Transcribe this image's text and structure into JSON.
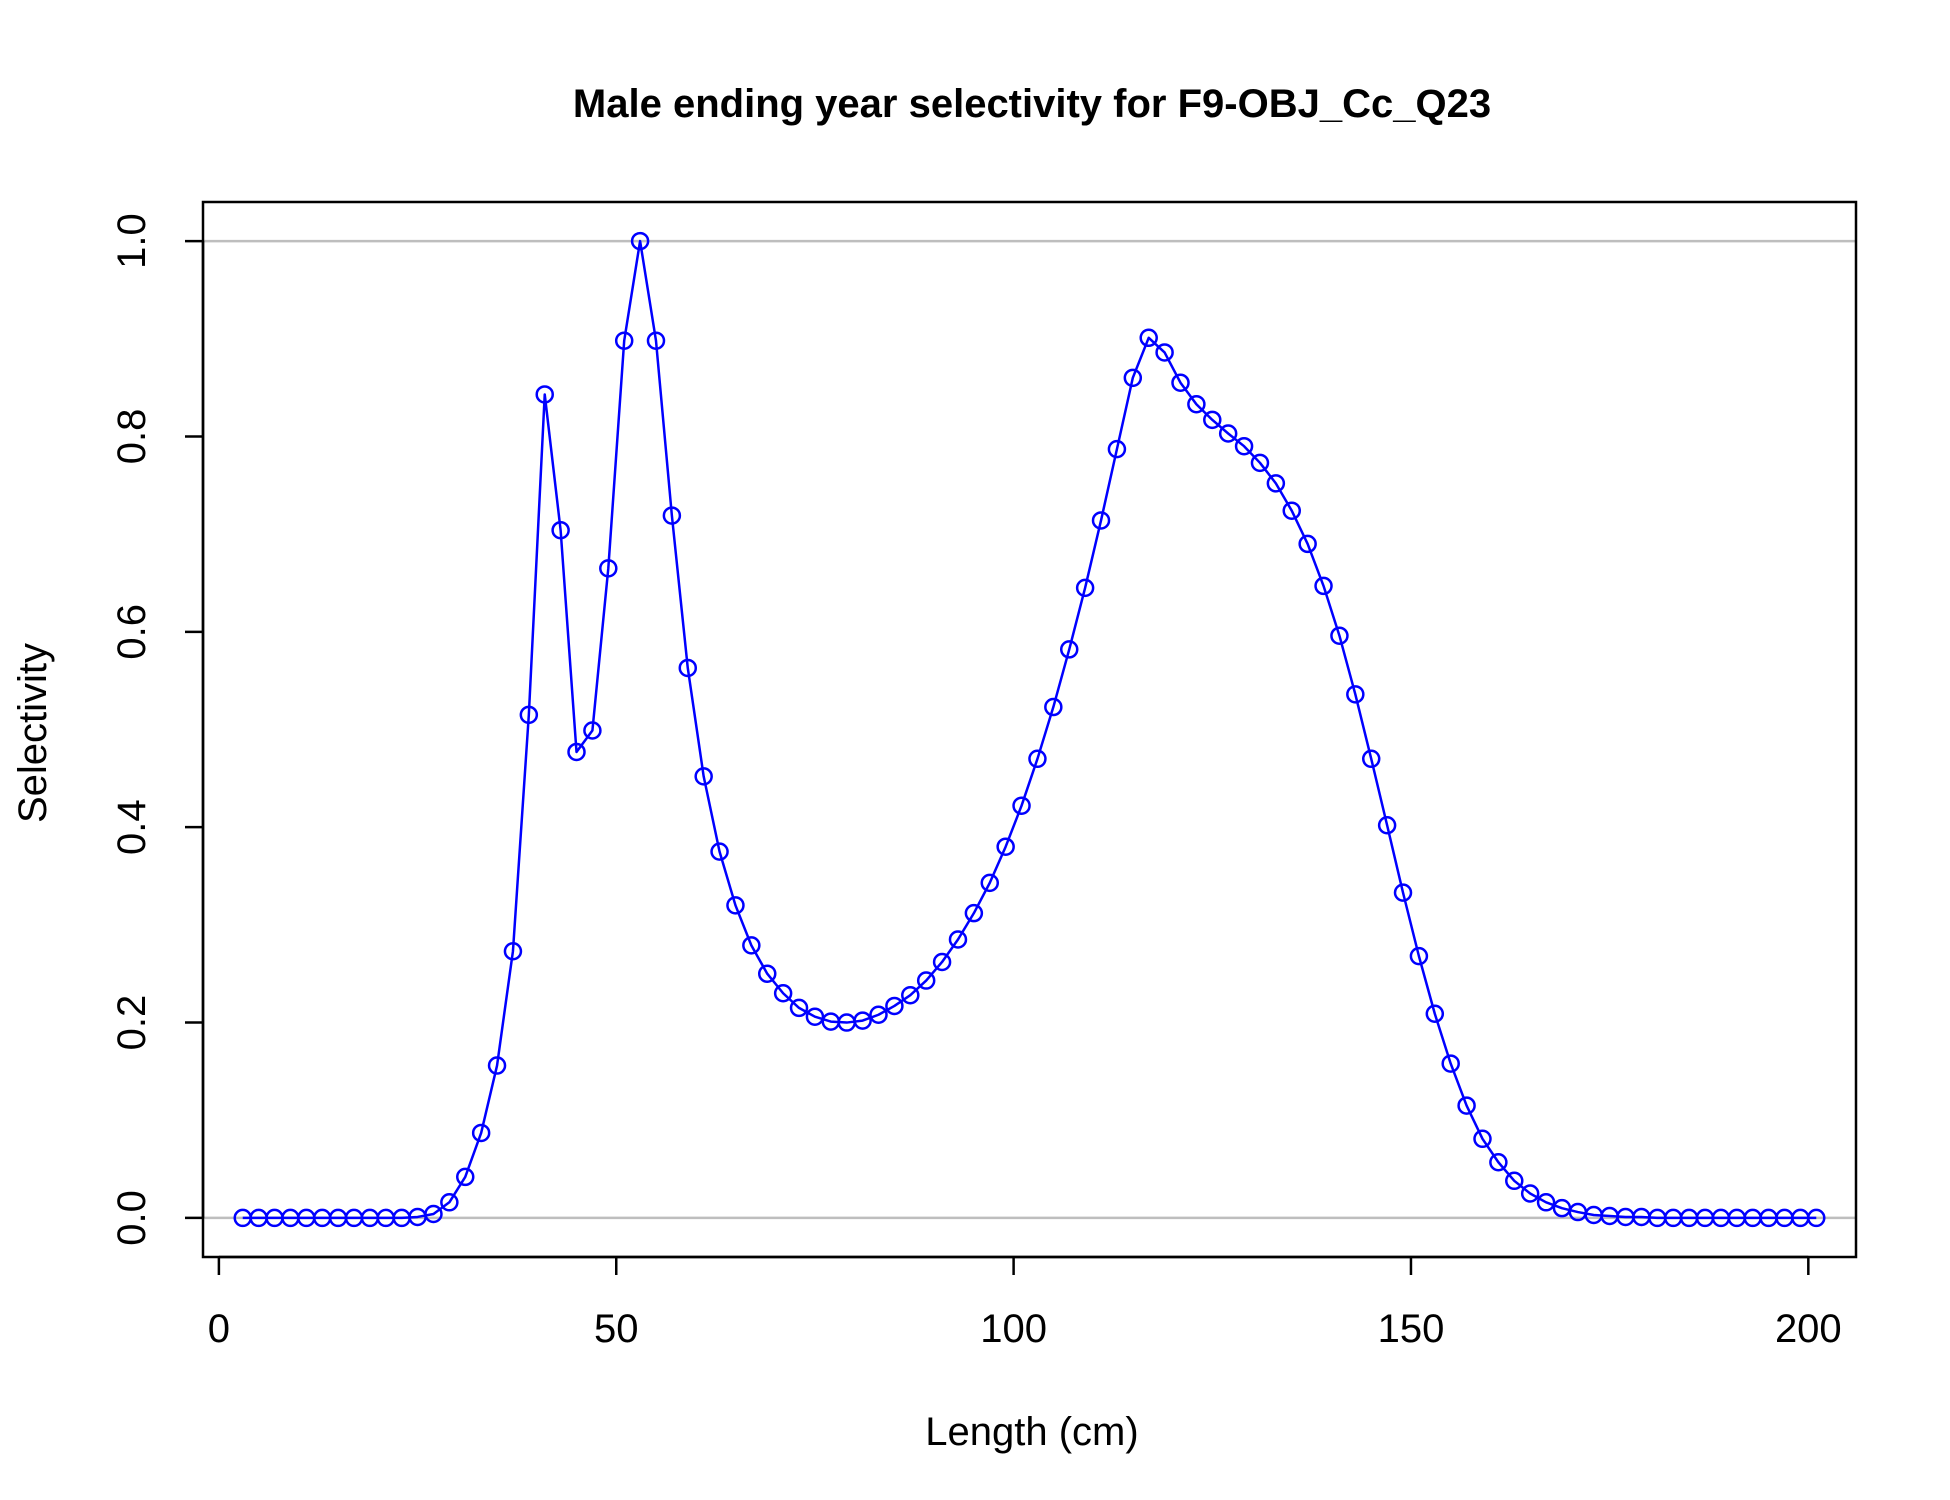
{
  "chart_data": {
    "type": "line",
    "title": "Male ending year selectivity for F9-OBJ_Cc_Q23",
    "xlabel": "Length (cm)",
    "ylabel": "Selectivity",
    "xlim": [
      -2,
      206
    ],
    "ylim": [
      -0.04,
      1.04
    ],
    "x_ticks": [
      0,
      50,
      100,
      150,
      200
    ],
    "x_tick_labels": [
      "0",
      "50",
      "100",
      "150",
      "200"
    ],
    "y_ticks": [
      0.0,
      0.2,
      0.4,
      0.6,
      0.8,
      1.0
    ],
    "y_tick_labels": [
      "0.0",
      "0.2",
      "0.4",
      "0.6",
      "0.8",
      "1.0"
    ],
    "reference_lines": [
      0,
      1
    ],
    "grid": false,
    "legend": false,
    "colors": {
      "series": "#0000ff",
      "reference_line": "#bebebe",
      "axes": "#000000"
    },
    "marker": "open-circle",
    "series": [
      {
        "x": [
          3,
          5,
          7,
          9,
          11,
          13,
          15,
          17,
          19,
          21,
          23,
          25,
          27,
          29,
          31,
          33,
          35,
          37,
          39,
          41,
          43,
          45,
          47,
          49,
          51,
          53,
          55,
          57,
          59,
          61,
          63,
          65,
          67,
          69,
          71,
          73,
          75,
          77,
          79,
          81,
          83,
          85,
          87,
          89,
          91,
          93,
          95,
          97,
          99,
          101,
          103,
          105,
          107,
          109,
          111,
          113,
          115,
          117,
          119,
          121,
          123,
          125,
          127,
          129,
          131,
          133,
          135,
          137,
          139,
          141,
          143,
          145,
          147,
          149,
          151,
          153,
          155,
          157,
          159,
          161,
          163,
          165,
          167,
          169,
          171,
          173,
          175,
          177,
          179,
          181,
          183,
          185,
          187,
          189,
          191,
          193,
          195,
          197,
          199,
          201
        ],
        "values": [
          0.0,
          0.0,
          0.0,
          0.0,
          0.0,
          0.0,
          0.0,
          0.0,
          0.0,
          0.0,
          0.0,
          0.001,
          0.004,
          0.016,
          0.042,
          0.087,
          0.156,
          0.273,
          0.515,
          0.843,
          0.704,
          0.477,
          0.499,
          0.665,
          0.898,
          1.0,
          0.898,
          0.719,
          0.563,
          0.452,
          0.375,
          0.32,
          0.279,
          0.25,
          0.23,
          0.215,
          0.206,
          0.201,
          0.2,
          0.202,
          0.208,
          0.217,
          0.228,
          0.243,
          0.262,
          0.285,
          0.312,
          0.343,
          0.38,
          0.422,
          0.47,
          0.523,
          0.582,
          0.645,
          0.714,
          0.787,
          0.86,
          0.901,
          0.886,
          0.855,
          0.833,
          0.817,
          0.803,
          0.79,
          0.773,
          0.752,
          0.724,
          0.69,
          0.647,
          0.596,
          0.536,
          0.47,
          0.402,
          0.333,
          0.268,
          0.209,
          0.158,
          0.115,
          0.081,
          0.057,
          0.038,
          0.025,
          0.016,
          0.01,
          0.006,
          0.003,
          0.002,
          0.001,
          0.001,
          0.0,
          0.0,
          0.0,
          0.0,
          0.0,
          0.0,
          0.0,
          0.0,
          0.0,
          0.0,
          0.0
        ]
      }
    ]
  }
}
